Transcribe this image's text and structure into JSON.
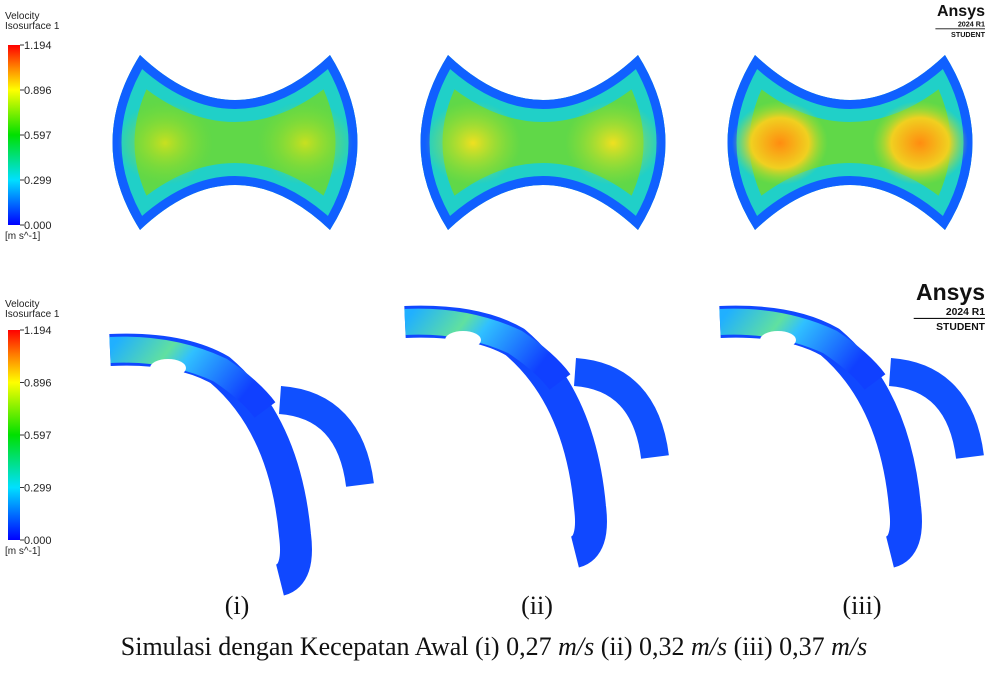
{
  "legends": [
    {
      "title": "Velocity",
      "subtitle": "Isosurface 1",
      "ticks": [
        "1.194",
        "0.896",
        "0.597",
        "0.299",
        "0.000"
      ],
      "unit": "[m s^-1]"
    },
    {
      "title": "Velocity",
      "subtitle": "Isosurface 1",
      "ticks": [
        "1.194",
        "0.896",
        "0.597",
        "0.299",
        "0.000"
      ],
      "unit": "[m s^-1]"
    }
  ],
  "logos": [
    {
      "brand": "Ansys",
      "version": "2024 R1",
      "edition": "STUDENT"
    },
    {
      "brand": "Ansys",
      "version": "2024 R1",
      "edition": "STUDENT"
    }
  ],
  "panel_labels": [
    "(i)",
    "(ii)",
    "(iii)"
  ],
  "caption": [
    {
      "text": "Simulasi dengan Kecepatan Awal (i) 0,27 ",
      "italic": false
    },
    {
      "text": "m/s",
      "italic": true
    },
    {
      "text": " (ii) 0,32 ",
      "italic": false
    },
    {
      "text": "m/s",
      "italic": true
    },
    {
      "text": " (iii) 0,37 ",
      "italic": false
    },
    {
      "text": "m/s",
      "italic": true
    }
  ]
}
